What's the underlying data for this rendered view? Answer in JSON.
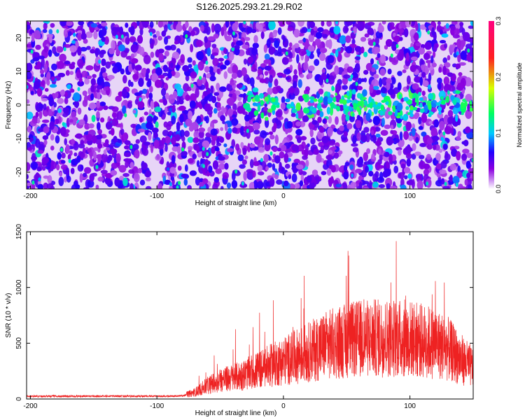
{
  "title": "S126.2025.293.21.29.R02",
  "colors": {
    "snr_line": "#ee2222",
    "axis": "#000000",
    "background": "#ffffff"
  },
  "chart_data": [
    {
      "type": "heatmap",
      "xlabel": "Height of straight line (km)",
      "ylabel": "Frequency (Hz)",
      "xlim": [
        -203,
        150
      ],
      "ylim": [
        -25,
        25
      ],
      "x_ticks": [
        -200,
        -100,
        0,
        100
      ],
      "y_ticks": [
        -20,
        -10,
        0,
        10,
        20
      ],
      "colorbar": {
        "label": "Normalized spectral amplitude",
        "range": [
          0,
          0.3
        ],
        "ticks": [
          "0.0",
          "0.1",
          "0.2",
          "0.3"
        ],
        "colormap": [
          "#ffffff",
          "#8a00e0",
          "#2000ff",
          "#00c8ff",
          "#00ff60",
          "#d8ff00",
          "#ff2020",
          "#ff0080"
        ]
      },
      "features": {
        "background_amplitude": 0.05,
        "max_amplitude": 0.15,
        "signal_band": {
          "frequency_hz": 0,
          "x_range_km": [
            -30,
            150
          ]
        }
      }
    },
    {
      "type": "line",
      "xlabel": "Height of straight line (km)",
      "ylabel": "SNR (10 * v/v)",
      "xlim": [
        -203,
        150
      ],
      "ylim": [
        0,
        1500
      ],
      "x_ticks": [
        -200,
        -100,
        0,
        100
      ],
      "y_ticks": [
        0,
        500,
        1000,
        1500
      ],
      "series": [
        {
          "x": [
            -203,
            -190,
            -170,
            -150,
            -130,
            -110,
            -90,
            -80,
            -70,
            -60,
            -50,
            -40,
            -30,
            -20,
            -10,
            0,
            10,
            20,
            30,
            40,
            50,
            60,
            70,
            80,
            90,
            100,
            110,
            120,
            130,
            140,
            150
          ],
          "y": [
            25,
            25,
            25,
            25,
            25,
            25,
            25,
            30,
            60,
            120,
            170,
            190,
            220,
            260,
            300,
            340,
            380,
            420,
            470,
            500,
            520,
            540,
            545,
            550,
            545,
            540,
            520,
            500,
            450,
            360,
            280
          ]
        }
      ]
    }
  ]
}
